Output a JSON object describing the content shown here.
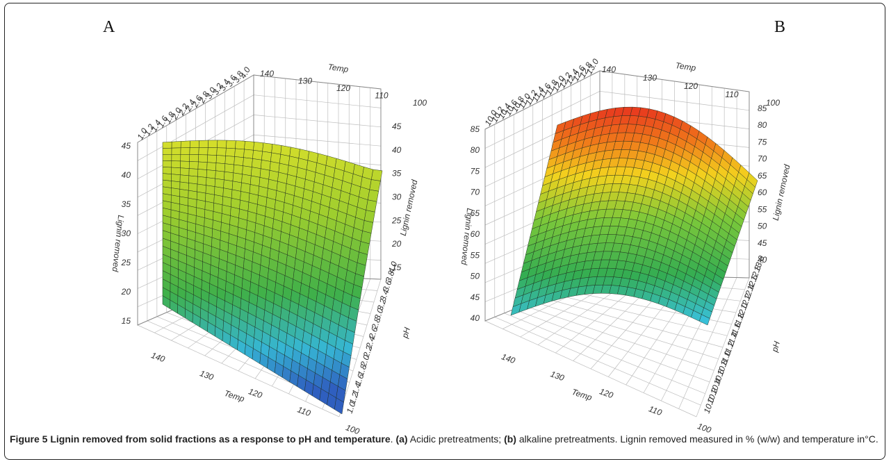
{
  "panels": {
    "a_label": "A",
    "b_label": "B"
  },
  "caption": {
    "title": "Figure 5 Lignin removed from solid fractions as a response to pH and temperature",
    "after_title": ". ",
    "a_tag": "(a)",
    "a_text": " Acidic pretreatments; ",
    "b_tag": "(b)",
    "b_text": " alkaline pretreatments. Lignin removed measured in % (w/w) and temperature in°C."
  },
  "chart_data": [
    {
      "type": "surface",
      "panel": "A",
      "x_label": "Temp",
      "y_label": "pH",
      "z_label": "Lignin removed",
      "x_ticks": [
        "140",
        "130",
        "120",
        "110",
        "100"
      ],
      "y_ticks": [
        "1.0",
        "1.2",
        "1.4",
        "1.6",
        "1.8",
        "2.0",
        "2.2",
        "2.4",
        "2.6",
        "2.8",
        "3.0",
        "3.2",
        "3.4",
        "3.6",
        "3.8",
        "4.0"
      ],
      "z_ticks": [
        "15",
        "20",
        "25",
        "30",
        "35",
        "40",
        "45"
      ],
      "xlim": [
        100,
        140
      ],
      "ylim": [
        1.0,
        4.0
      ],
      "zlim": [
        15,
        45
      ],
      "surface_summary": {
        "min": 15,
        "max": 45
      }
    },
    {
      "type": "surface",
      "panel": "B",
      "x_label": "Temp",
      "y_label": "pH",
      "z_label": "Lignin removed",
      "x_ticks": [
        "140",
        "130",
        "120",
        "110",
        "100"
      ],
      "y_ticks": [
        "10.0",
        "10.2",
        "10.4",
        "10.6",
        "10.8",
        "11.0",
        "11.2",
        "11.4",
        "11.6",
        "11.8",
        "12.0",
        "12.2",
        "12.4",
        "12.6",
        "12.8",
        "13.0"
      ],
      "z_ticks": [
        "40",
        "45",
        "50",
        "55",
        "60",
        "65",
        "70",
        "75",
        "80",
        "85"
      ],
      "xlim": [
        100,
        140
      ],
      "ylim": [
        10.0,
        13.0
      ],
      "zlim": [
        40,
        85
      ],
      "surface_summary": {
        "min": 40,
        "max": 85
      }
    }
  ]
}
